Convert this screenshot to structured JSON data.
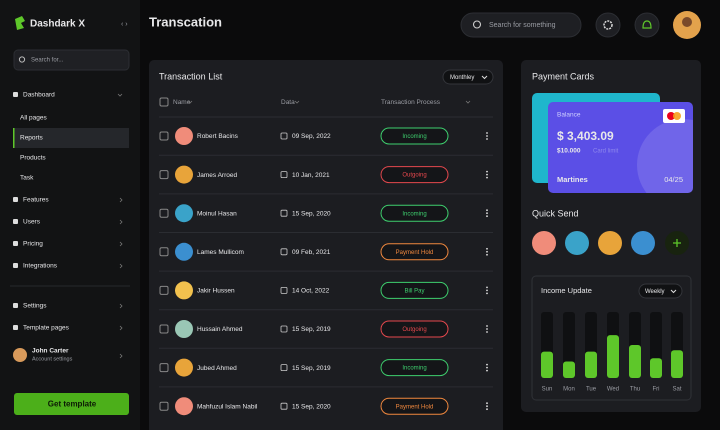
{
  "sidebar": {
    "brand": "Dashdark X",
    "search_placeholder": "Search for...",
    "nav": [
      {
        "label": "Dashboard",
        "children": [
          "All pages",
          "Reports",
          "Products",
          "Task"
        ],
        "active_child": 1
      },
      {
        "label": "Features"
      },
      {
        "label": "Users"
      },
      {
        "label": "Pricing"
      },
      {
        "label": "Integrations"
      }
    ],
    "bottom_nav": [
      {
        "label": "Settings"
      },
      {
        "label": "Template pages"
      }
    ],
    "user": {
      "name": "John Carter",
      "subtitle": "Account settings"
    },
    "button": "Get template"
  },
  "header": {
    "title": "Transcation",
    "search_placeholder": "Search for something"
  },
  "transactions": {
    "title": "Transaction List",
    "filter": "Monthley",
    "columns": [
      "Name",
      "Data",
      "Transaction Process"
    ],
    "rows": [
      {
        "name": "Robert Bacins",
        "date": "09 Sep, 2022",
        "status": "Incoming",
        "color": "#3ecf6e"
      },
      {
        "name": "James Arroed",
        "date": "10 Jan, 2021",
        "status": "Outgoing",
        "color": "#e5484d"
      },
      {
        "name": "Moinul Hasan",
        "date": "15 Sep, 2020",
        "status": "Incoming",
        "color": "#3ecf6e"
      },
      {
        "name": "Lames Mullicom",
        "date": "09 Feb, 2021",
        "status": "Payment Hold",
        "color": "#f0883e"
      },
      {
        "name": "Jakir Hussen",
        "date": "14 Oct, 2022",
        "status": "Bill Pay",
        "color": "#3ecf6e"
      },
      {
        "name": "Hussain Ahmed",
        "date": "15 Sep, 2019",
        "status": "Outgoing",
        "color": "#e5484d"
      },
      {
        "name": "Jubed Ahmed",
        "date": "15 Sep, 2019",
        "status": "Incoming",
        "color": "#3ecf6e"
      },
      {
        "name": "Mahfuzul Islam Nabil",
        "date": "15 Sep, 2020",
        "status": "Payment Hold",
        "color": "#f0883e"
      }
    ]
  },
  "payment_cards": {
    "title": "Payment Cards",
    "card": {
      "label": "Balance",
      "amount": "$ 3,403.09",
      "limit": "$10.000",
      "limit_label": "Card limit",
      "holder": "Martines",
      "expiry": "04/25"
    }
  },
  "quick_send": {
    "title": "Quick Send"
  },
  "income": {
    "title": "Income Update",
    "filter": "Weekly",
    "color": "#5ec72a",
    "categories": [
      "Sun",
      "Mon",
      "Tue",
      "Wed",
      "Thu",
      "Fri",
      "Sat"
    ],
    "values": [
      40,
      25,
      40,
      65,
      50,
      30,
      42
    ],
    "ylim": [
      0,
      100
    ]
  }
}
